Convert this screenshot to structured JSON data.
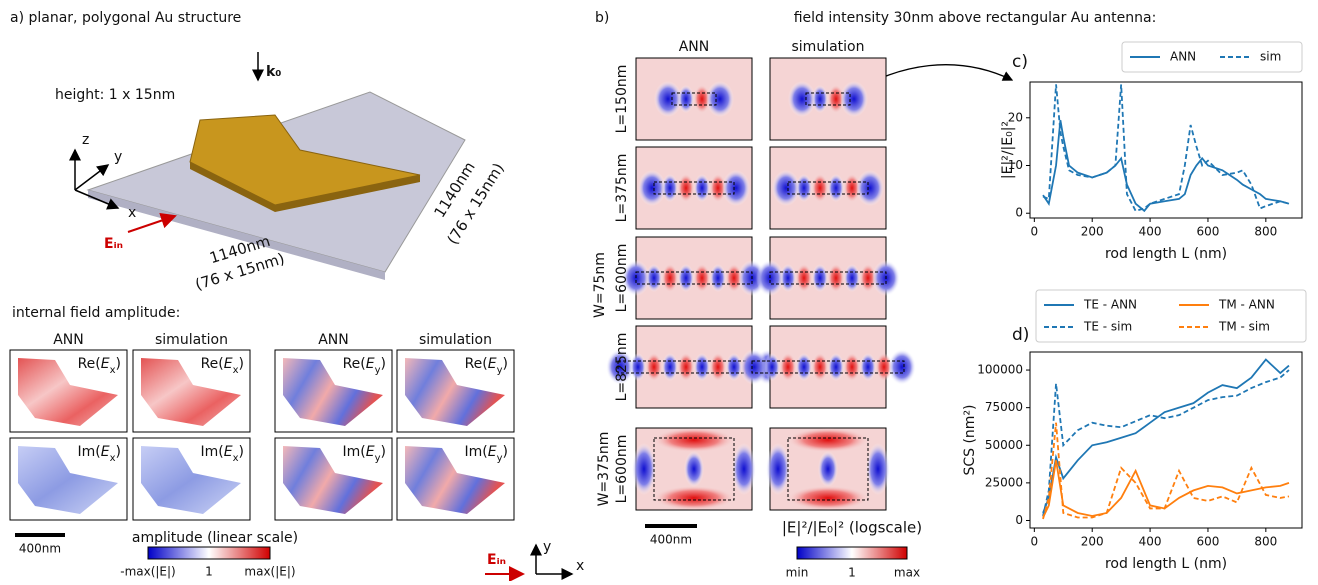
{
  "panel_a": {
    "label": "a) planar, polygonal Au structure",
    "height": "height: 1 x 15nm",
    "k0": "k₀",
    "axes": {
      "x": "x",
      "y": "y",
      "z": "z"
    },
    "e_in": "Eᵢₙ",
    "dim_x": [
      "1140nm",
      "(76 x 15nm)"
    ],
    "dim_y": [
      "1140nm",
      "(76 x 15nm)"
    ]
  },
  "internal_field": {
    "title": "internal field amplitude:",
    "columns": [
      "ANN",
      "simulation",
      "ANN",
      "simulation"
    ],
    "panels": [
      [
        "Re(",
        "E",
        "x",
        ")"
      ],
      [
        "Re(",
        "E",
        "x",
        ")"
      ],
      [
        "Re(",
        "E",
        "y",
        ")"
      ],
      [
        "Re(",
        "E",
        "y",
        ")"
      ],
      [
        "Im(",
        "E",
        "x",
        ")"
      ],
      [
        "Im(",
        "E",
        "x",
        ")"
      ],
      [
        "Im(",
        "E",
        "y",
        ")"
      ],
      [
        "Im(",
        "E",
        "y",
        ")"
      ]
    ],
    "scale_bar": "400nm",
    "colorbar": {
      "title": "amplitude (linear scale)",
      "ticks": [
        "-max(|E|)",
        "1",
        "max(|E|)"
      ]
    }
  },
  "panel_b": {
    "label": "b)",
    "title": "field intensity 30nm above rectangular Au antenna:",
    "columns": [
      "ANN",
      "simulation"
    ],
    "rows": [
      "L=150nm",
      "L=375nm",
      "L=600nm",
      "L=825nm"
    ],
    "group_label": "W=75nm",
    "last_row": [
      "W=375nm",
      "L=600nm"
    ],
    "scale_bar": "400nm",
    "colorbar": {
      "title": "|E|²/|E₀|² (logscale)",
      "ticks": [
        "min",
        "1",
        "max"
      ]
    },
    "axes": {
      "x": "x",
      "y": "y"
    },
    "e_in": "Eᵢₙ"
  },
  "chart_data": [
    {
      "type": "line",
      "label": "c)",
      "xlabel": "rod length L (nm)",
      "ylabel": "|E|²/|E₀|²",
      "legend": "upper right",
      "x": [
        30,
        50,
        75,
        90,
        100,
        120,
        150,
        200,
        250,
        280,
        300,
        320,
        350,
        380,
        400,
        450,
        500,
        520,
        540,
        560,
        580,
        600,
        650,
        700,
        720,
        750,
        780,
        800,
        850,
        880
      ],
      "series": [
        {
          "name": "ANN",
          "color": "#1f77b4",
          "dash": false,
          "values": [
            3.8,
            2,
            10,
            19.5,
            16,
            10,
            8.5,
            7.5,
            8.5,
            10,
            11.5,
            6,
            2,
            0.5,
            2,
            2.5,
            3,
            4,
            8,
            10,
            11.5,
            10,
            9,
            7,
            6,
            5,
            4,
            3,
            2.5,
            2
          ]
        },
        {
          "name": "sim",
          "color": "#1f77b4",
          "dash": true,
          "values": [
            3.5,
            3,
            27,
            17,
            14,
            9,
            8,
            7.5,
            8.5,
            10,
            27,
            4,
            0.5,
            1,
            2,
            3,
            4,
            10,
            18.5,
            14,
            10,
            11,
            8,
            8.5,
            9,
            6,
            1,
            1.5,
            2.5,
            2
          ]
        }
      ],
      "xlim": [
        -15,
        925
      ],
      "xticks": [
        0,
        200,
        400,
        600,
        800
      ],
      "ylim": [
        -1,
        27.5
      ],
      "yticks": [
        0,
        10,
        20
      ]
    },
    {
      "type": "line",
      "label": "d)",
      "xlabel": "rod length L (nm)",
      "ylabel": "SCS (nm²)",
      "legend": "upper center",
      "x": [
        30,
        50,
        75,
        100,
        150,
        200,
        250,
        300,
        350,
        400,
        450,
        500,
        550,
        600,
        650,
        700,
        750,
        800,
        850,
        880
      ],
      "series": [
        {
          "name": "TE - ANN",
          "color": "#1f77b4",
          "dash": false,
          "values": [
            5000,
            15000,
            42000,
            28000,
            40000,
            50000,
            52000,
            55000,
            58000,
            65000,
            72000,
            75000,
            78000,
            85000,
            90000,
            88000,
            95000,
            107000,
            98000,
            103000
          ]
        },
        {
          "name": "TE - sim",
          "color": "#1f77b4",
          "dash": true,
          "values": [
            3000,
            20000,
            91000,
            50000,
            60000,
            65000,
            63000,
            62000,
            66000,
            70000,
            68000,
            70000,
            75000,
            80000,
            82000,
            83000,
            88000,
            92000,
            95000,
            100000
          ]
        },
        {
          "name": "TM - ANN",
          "color": "#ff7f0e",
          "dash": false,
          "values": [
            2000,
            10000,
            40000,
            10000,
            5000,
            3000,
            5000,
            15000,
            33000,
            10000,
            8000,
            15000,
            20000,
            23000,
            22000,
            18000,
            20000,
            22000,
            23000,
            25000
          ]
        },
        {
          "name": "TM - sim",
          "color": "#ff7f0e",
          "dash": true,
          "values": [
            1000,
            15000,
            65000,
            5000,
            2000,
            2000,
            5000,
            35000,
            25000,
            8000,
            8000,
            33000,
            15000,
            13000,
            16000,
            12000,
            35000,
            17000,
            15000,
            16000
          ]
        }
      ],
      "xlim": [
        -15,
        925
      ],
      "xticks": [
        0,
        200,
        400,
        600,
        800
      ],
      "ylim": [
        -5000,
        112000
      ],
      "yticks": [
        0,
        25000,
        50000,
        75000,
        100000
      ]
    }
  ]
}
